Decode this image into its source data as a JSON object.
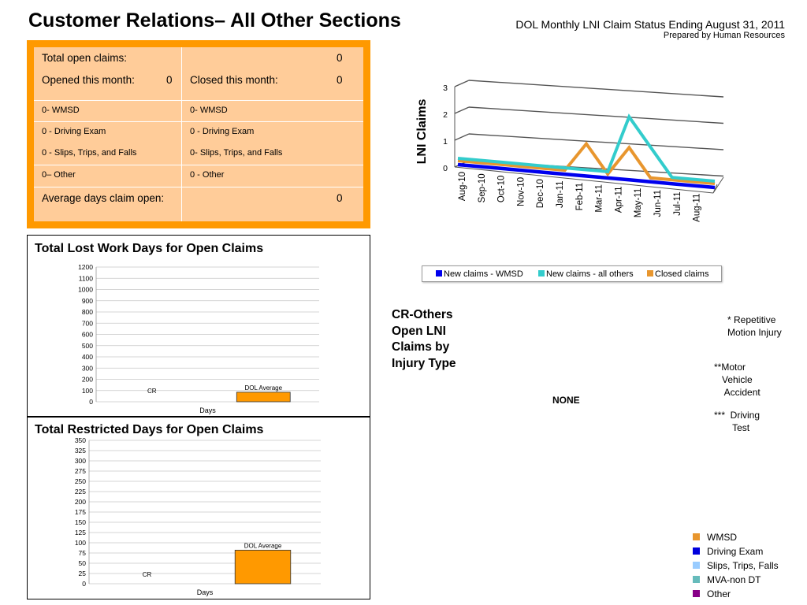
{
  "page": {
    "title": "Customer Relations– All Other Sections",
    "report_title": "DOL Monthly LNI Claim Status Ending August 31, 2011",
    "prepared_by": "Prepared by Human Resources"
  },
  "summary": {
    "total_open_label": "Total open claims:",
    "total_open_value": "0",
    "opened_label": "Opened this month:",
    "opened_value": "0",
    "closed_label": "Closed this month:",
    "closed_value": "0",
    "left_items": [
      "0- WMSD",
      "0 - Driving Exam",
      "0 - Slips, Trips, and Falls",
      "0– Other"
    ],
    "right_items": [
      "0- WMSD",
      "0 - Driving Exam",
      "0- Slips, Trips, and Falls",
      "0 - Other"
    ],
    "avg_label": "Average days claim open:",
    "avg_value": "0"
  },
  "colors": {
    "orange": "#ff9900",
    "peach": "#ffcc99",
    "wmsd_blue": "#0000ee",
    "all_others_teal": "#33cccc",
    "closed_orange": "#e8962e"
  },
  "chart_data": [
    {
      "type": "bar",
      "title": "Total Lost Work Days for Open Claims",
      "xlabel": "Days",
      "categories": [
        "CR",
        "DOL Average"
      ],
      "values": [
        0,
        85
      ],
      "ylim": [
        0,
        1200
      ],
      "yticks": [
        "0",
        "100",
        "200",
        "300",
        "400",
        "500",
        "600",
        "700",
        "800",
        "900",
        "1000",
        "1100",
        "1200"
      ],
      "grid": true
    },
    {
      "type": "bar",
      "title": "Total Restricted Days for Open Claims",
      "xlabel": "Days",
      "categories": [
        "CR",
        "DOL Average"
      ],
      "values": [
        0,
        82
      ],
      "ylim": [
        0,
        350
      ],
      "yticks": [
        "0",
        "25",
        "50",
        "75",
        "100",
        "125",
        "150",
        "175",
        "200",
        "225",
        "250",
        "275",
        "300",
        "325",
        "350"
      ],
      "grid": true
    },
    {
      "type": "line",
      "ylabel": "LNI Claims",
      "categories": [
        "Aug-10",
        "Sep-10",
        "Oct-10",
        "Nov-10",
        "Dec-10",
        "Jan-11",
        "Feb-11",
        "Mar-11",
        "Apr-11",
        "May-11",
        "Jun-11",
        "Jul-11",
        "Aug-11"
      ],
      "ylim": [
        0,
        3
      ],
      "yticks": [
        "0",
        "1",
        "2",
        "3"
      ],
      "legend_position": "bottom",
      "series": [
        {
          "name": "New claims - WMSD",
          "values": [
            0,
            0,
            0,
            0,
            0,
            0,
            0,
            0,
            0,
            0,
            0,
            0,
            0
          ]
        },
        {
          "name": "New claims - all others",
          "values": [
            0,
            0,
            0,
            0,
            0,
            0,
            0,
            0,
            2,
            1,
            0,
            0,
            0
          ]
        },
        {
          "name": "Closed claims",
          "values": [
            0,
            0,
            0,
            0,
            0,
            0,
            1,
            0,
            1,
            0,
            0,
            0,
            0
          ]
        }
      ]
    }
  ],
  "cr_section": {
    "title": "CR-Others Open LNI Claims by Injury Type",
    "none_label": "NONE",
    "notes": [
      "* Repetitive\nMotion Injury",
      "**Motor\n   Vehicle\n    Accident",
      "***  Driving\n       Test"
    ]
  },
  "injury_legend": [
    {
      "label": "WMSD",
      "color": "#e8962e"
    },
    {
      "label": "Driving Exam",
      "color": "#0000dd"
    },
    {
      "label": "Slips, Trips, Falls",
      "color": "#99ccff"
    },
    {
      "label": "MVA-non DT",
      "color": "#66bbbb"
    },
    {
      "label": "Other",
      "color": "#880088"
    }
  ]
}
